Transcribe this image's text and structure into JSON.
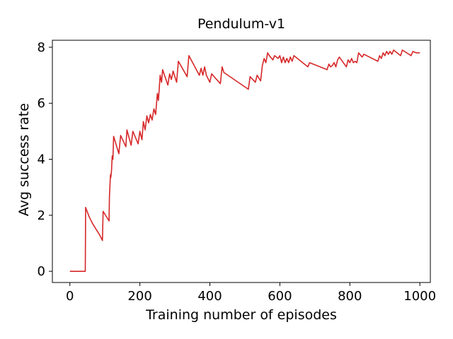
{
  "chart_data": {
    "type": "line",
    "title": "Pendulum-v1",
    "xlabel": "Training number of episodes",
    "ylabel": "Avg success rate",
    "xlim": [
      -50,
      1030
    ],
    "ylim": [
      -0.4,
      8.25
    ],
    "xticks": [
      0,
      200,
      400,
      600,
      800,
      1000
    ],
    "yticks": [
      0,
      2,
      4,
      6,
      8
    ],
    "grid": false,
    "color": "#d62728",
    "series": [
      {
        "x": [
          0,
          44,
          45,
          55,
          65,
          75,
          85,
          93,
          95,
          112,
          113,
          116,
          117,
          119,
          121,
          123,
          125,
          140,
          145,
          160,
          163,
          175,
          180,
          195,
          200,
          206,
          210,
          215,
          220,
          225,
          230,
          235,
          240,
          245,
          250,
          253,
          258,
          262,
          265,
          280,
          285,
          290,
          295,
          305,
          310,
          335,
          340,
          370,
          375,
          380,
          385,
          390,
          400,
          405,
          430,
          435,
          440,
          510,
          515,
          530,
          535,
          545,
          550,
          555,
          560,
          565,
          570,
          580,
          585,
          595,
          600,
          605,
          610,
          615,
          620,
          625,
          630,
          635,
          640,
          680,
          685,
          735,
          740,
          745,
          750,
          755,
          760,
          765,
          770,
          790,
          795,
          800,
          805,
          810,
          815,
          820,
          825,
          835,
          840,
          880,
          885,
          890,
          895,
          900,
          905,
          910,
          915,
          920,
          925,
          945,
          950,
          975,
          980,
          990,
          1000
        ],
        "values": [
          0,
          0,
          2.28,
          1.95,
          1.7,
          1.5,
          1.3,
          1.1,
          2.14,
          1.8,
          2.65,
          3.45,
          3.35,
          3.6,
          4.12,
          4.0,
          4.82,
          4.2,
          4.85,
          4.45,
          5.05,
          4.5,
          5.0,
          4.55,
          5.0,
          4.7,
          5.35,
          5.05,
          5.55,
          5.3,
          5.6,
          5.4,
          5.8,
          5.6,
          6.35,
          6.1,
          7.0,
          6.75,
          7.2,
          6.65,
          7.05,
          6.85,
          7.15,
          6.75,
          7.5,
          6.95,
          7.7,
          7.0,
          7.25,
          7.0,
          7.3,
          7.0,
          6.75,
          7.05,
          6.7,
          7.3,
          7.1,
          6.5,
          6.95,
          6.75,
          7.0,
          6.8,
          7.35,
          7.6,
          7.45,
          7.8,
          7.7,
          7.55,
          7.7,
          7.6,
          7.7,
          7.45,
          7.65,
          7.45,
          7.6,
          7.45,
          7.65,
          7.5,
          7.7,
          7.3,
          7.45,
          7.2,
          7.4,
          7.3,
          7.35,
          7.45,
          7.3,
          7.55,
          7.65,
          7.3,
          7.55,
          7.45,
          7.6,
          7.45,
          7.5,
          7.45,
          7.8,
          7.65,
          7.75,
          7.5,
          7.7,
          7.6,
          7.8,
          7.7,
          7.85,
          7.75,
          7.85,
          7.75,
          7.9,
          7.7,
          7.9,
          7.7,
          7.85,
          7.8,
          7.8
        ]
      }
    ]
  }
}
